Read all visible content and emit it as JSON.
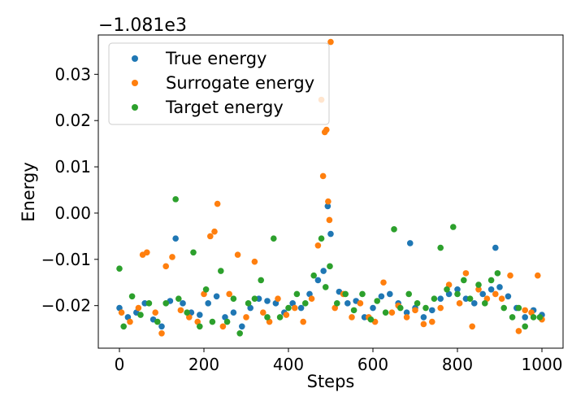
{
  "chart_data": {
    "type": "scatter",
    "title": "",
    "xlabel": "Steps",
    "ylabel": "Energy",
    "offset_text": "−1.081e3",
    "xlim": [
      -50,
      1050
    ],
    "ylim": [
      -0.0292,
      0.0385
    ],
    "xticks": [
      0,
      200,
      400,
      600,
      800,
      1000
    ],
    "xtick_labels": [
      "0",
      "200",
      "400",
      "600",
      "800",
      "1000"
    ],
    "yticks": [
      -0.02,
      -0.01,
      0.0,
      0.01,
      0.02,
      0.03
    ],
    "ytick_labels": [
      "−0.02",
      "−0.01",
      "0.00",
      "0.01",
      "0.02",
      "0.03"
    ],
    "grid": false,
    "legend_position": "top-left",
    "series": [
      {
        "name": "True energy",
        "color": "#1f77b4",
        "points": [
          [
            0,
            -0.0205
          ],
          [
            20,
            -0.0225
          ],
          [
            40,
            -0.0215
          ],
          [
            60,
            -0.0195
          ],
          [
            80,
            -0.023
          ],
          [
            100,
            -0.0245
          ],
          [
            120,
            -0.019
          ],
          [
            133,
            -0.0055
          ],
          [
            150,
            -0.0195
          ],
          [
            170,
            -0.0215
          ],
          [
            190,
            -0.022
          ],
          [
            210,
            -0.0195
          ],
          [
            230,
            -0.018
          ],
          [
            250,
            -0.0225
          ],
          [
            270,
            -0.0215
          ],
          [
            290,
            -0.0245
          ],
          [
            310,
            -0.0205
          ],
          [
            330,
            -0.0185
          ],
          [
            350,
            -0.019
          ],
          [
            370,
            -0.0195
          ],
          [
            390,
            -0.0215
          ],
          [
            410,
            -0.0195
          ],
          [
            430,
            -0.0205
          ],
          [
            450,
            -0.0175
          ],
          [
            470,
            -0.0145
          ],
          [
            483,
            -0.0125
          ],
          [
            493,
            0.0015
          ],
          [
            500,
            -0.0045
          ],
          [
            520,
            -0.017
          ],
          [
            540,
            -0.0195
          ],
          [
            560,
            -0.019
          ],
          [
            580,
            -0.0225
          ],
          [
            600,
            -0.0205
          ],
          [
            620,
            -0.018
          ],
          [
            640,
            -0.0175
          ],
          [
            660,
            -0.0195
          ],
          [
            680,
            -0.0215
          ],
          [
            688,
            -0.0065
          ],
          [
            700,
            -0.0205
          ],
          [
            720,
            -0.0225
          ],
          [
            740,
            -0.021
          ],
          [
            760,
            -0.0185
          ],
          [
            780,
            -0.0175
          ],
          [
            800,
            -0.0165
          ],
          [
            820,
            -0.0185
          ],
          [
            840,
            -0.0195
          ],
          [
            860,
            -0.0175
          ],
          [
            880,
            -0.0165
          ],
          [
            890,
            -0.0075
          ],
          [
            900,
            -0.016
          ],
          [
            920,
            -0.018
          ],
          [
            940,
            -0.0205
          ],
          [
            960,
            -0.0225
          ],
          [
            980,
            -0.021
          ],
          [
            1000,
            -0.022
          ]
        ]
      },
      {
        "name": "Surrogate energy",
        "color": "#ff7f0e",
        "points": [
          [
            5,
            -0.0215
          ],
          [
            25,
            -0.0235
          ],
          [
            45,
            -0.0205
          ],
          [
            55,
            -0.009
          ],
          [
            65,
            -0.0085
          ],
          [
            85,
            -0.0215
          ],
          [
            100,
            -0.026
          ],
          [
            110,
            -0.0115
          ],
          [
            125,
            -0.0095
          ],
          [
            145,
            -0.021
          ],
          [
            165,
            -0.0225
          ],
          [
            185,
            -0.0235
          ],
          [
            200,
            -0.0175
          ],
          [
            215,
            -0.005
          ],
          [
            225,
            -0.004
          ],
          [
            232,
            0.002
          ],
          [
            245,
            -0.0245
          ],
          [
            260,
            -0.0175
          ],
          [
            280,
            -0.009
          ],
          [
            300,
            -0.0225
          ],
          [
            320,
            -0.0105
          ],
          [
            340,
            -0.0215
          ],
          [
            355,
            -0.0235
          ],
          [
            375,
            -0.0185
          ],
          [
            395,
            -0.022
          ],
          [
            415,
            -0.0205
          ],
          [
            435,
            -0.0235
          ],
          [
            455,
            -0.0185
          ],
          [
            470,
            -0.007
          ],
          [
            478,
            0.0245
          ],
          [
            482,
            0.008
          ],
          [
            486,
            0.0175
          ],
          [
            490,
            0.018
          ],
          [
            494,
            0.0025
          ],
          [
            497,
            -0.0015
          ],
          [
            500,
            0.037
          ],
          [
            510,
            -0.0205
          ],
          [
            530,
            -0.0175
          ],
          [
            550,
            -0.0225
          ],
          [
            570,
            -0.0195
          ],
          [
            590,
            -0.0225
          ],
          [
            605,
            -0.0235
          ],
          [
            625,
            -0.015
          ],
          [
            645,
            -0.0215
          ],
          [
            660,
            -0.02
          ],
          [
            680,
            -0.0225
          ],
          [
            700,
            -0.021
          ],
          [
            720,
            -0.024
          ],
          [
            740,
            -0.0235
          ],
          [
            760,
            -0.0205
          ],
          [
            780,
            -0.0155
          ],
          [
            805,
            -0.0195
          ],
          [
            820,
            -0.013
          ],
          [
            835,
            -0.0245
          ],
          [
            850,
            -0.0165
          ],
          [
            870,
            -0.0185
          ],
          [
            890,
            -0.0175
          ],
          [
            905,
            -0.0185
          ],
          [
            925,
            -0.0135
          ],
          [
            945,
            -0.0255
          ],
          [
            960,
            -0.021
          ],
          [
            975,
            -0.0215
          ],
          [
            990,
            -0.0135
          ],
          [
            1000,
            -0.023
          ]
        ]
      },
      {
        "name": "Target energy",
        "color": "#2ca02c",
        "points": [
          [
            0,
            -0.012
          ],
          [
            10,
            -0.0245
          ],
          [
            30,
            -0.018
          ],
          [
            50,
            -0.022
          ],
          [
            70,
            -0.0195
          ],
          [
            90,
            -0.0235
          ],
          [
            110,
            -0.0195
          ],
          [
            133,
            0.003
          ],
          [
            140,
            -0.0185
          ],
          [
            160,
            -0.0215
          ],
          [
            175,
            -0.0085
          ],
          [
            190,
            -0.0245
          ],
          [
            205,
            -0.0165
          ],
          [
            220,
            -0.0235
          ],
          [
            240,
            -0.0125
          ],
          [
            255,
            -0.0235
          ],
          [
            270,
            -0.0185
          ],
          [
            285,
            -0.026
          ],
          [
            305,
            -0.0195
          ],
          [
            320,
            -0.0185
          ],
          [
            335,
            -0.0145
          ],
          [
            350,
            -0.0225
          ],
          [
            365,
            -0.0055
          ],
          [
            380,
            -0.0225
          ],
          [
            400,
            -0.0205
          ],
          [
            420,
            -0.0175
          ],
          [
            440,
            -0.0195
          ],
          [
            460,
            -0.0135
          ],
          [
            478,
            -0.0055
          ],
          [
            488,
            -0.016
          ],
          [
            498,
            -0.0115
          ],
          [
            515,
            -0.0195
          ],
          [
            535,
            -0.0175
          ],
          [
            555,
            -0.021
          ],
          [
            575,
            -0.0175
          ],
          [
            595,
            -0.023
          ],
          [
            610,
            -0.019
          ],
          [
            630,
            -0.0215
          ],
          [
            650,
            -0.0035
          ],
          [
            665,
            -0.0205
          ],
          [
            685,
            -0.0175
          ],
          [
            705,
            -0.0195
          ],
          [
            725,
            -0.0205
          ],
          [
            745,
            -0.0185
          ],
          [
            760,
            -0.0075
          ],
          [
            775,
            -0.0165
          ],
          [
            790,
            -0.003
          ],
          [
            800,
            -0.0175
          ],
          [
            815,
            -0.0145
          ],
          [
            830,
            -0.0185
          ],
          [
            850,
            -0.0155
          ],
          [
            865,
            -0.0195
          ],
          [
            880,
            -0.0145
          ],
          [
            895,
            -0.013
          ],
          [
            910,
            -0.0205
          ],
          [
            930,
            -0.0225
          ],
          [
            945,
            -0.0205
          ],
          [
            960,
            -0.0245
          ],
          [
            980,
            -0.0225
          ],
          [
            995,
            -0.0225
          ]
        ]
      }
    ]
  }
}
